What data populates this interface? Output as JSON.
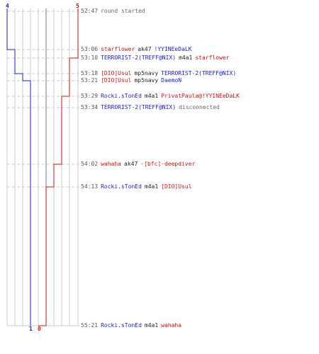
{
  "chart_data": {
    "type": "line",
    "series": [
      {
        "color": "#1a1acc",
        "values": [
          4,
          3,
          2,
          1
        ]
      },
      {
        "color": "#cc1111",
        "values": [
          5,
          4,
          3,
          2,
          1,
          0
        ]
      }
    ],
    "corner_labels": {
      "blue_start": "4",
      "red_start": "5",
      "blue_end": "1",
      "red_end": "0"
    }
  },
  "events": [
    {
      "time": "52:47",
      "parts": [
        {
          "text": "round started",
          "c": "gray"
        }
      ]
    },
    {
      "time": "53:06",
      "parts": [
        {
          "text": "starflower",
          "c": "red"
        },
        {
          "text": "ak47",
          "c": "dark"
        },
        {
          "text": "!YYINEeDaLK",
          "c": "blue"
        }
      ]
    },
    {
      "time": "53:10",
      "parts": [
        {
          "text": "TERRORIST-2(TREFF@NIX)",
          "c": "blue"
        },
        {
          "text": "m4a1",
          "c": "dark"
        },
        {
          "text": "starflower",
          "c": "red"
        }
      ]
    },
    {
      "time": "53:18",
      "parts": [
        {
          "text": "[DIO]Usul",
          "c": "red"
        },
        {
          "text": "mp5navy",
          "c": "dark"
        },
        {
          "text": "TERRORIST-2(TREFF@NIX)",
          "c": "blue"
        }
      ]
    },
    {
      "time": "53:21",
      "parts": [
        {
          "text": "[DIO]Usul",
          "c": "red"
        },
        {
          "text": "mp5navy",
          "c": "dark"
        },
        {
          "text": "DaemoN",
          "c": "blue"
        }
      ]
    },
    {
      "time": "53:29",
      "parts": [
        {
          "text": "Rocki.sTonEd",
          "c": "blue"
        },
        {
          "text": "m4a1",
          "c": "dark"
        },
        {
          "text": "PrivatPaula@!YYINEeDaLK",
          "c": "red"
        }
      ]
    },
    {
      "time": "53:34",
      "parts": [
        {
          "text": "TERRORIST-2(TREFF@NIX)",
          "c": "blue"
        },
        {
          "text": "disconnected",
          "c": "gray"
        }
      ]
    },
    {
      "time": "54:02",
      "parts": [
        {
          "text": "wahaha",
          "c": "red"
        },
        {
          "text": "ak47",
          "c": "dark"
        },
        {
          "text": "-[bfc]-deepdiver",
          "c": "red"
        }
      ]
    },
    {
      "time": "54:13",
      "parts": [
        {
          "text": "Rocki.sTonEd",
          "c": "blue"
        },
        {
          "text": "m4a1",
          "c": "dark"
        },
        {
          "text": "[DIO]Usul",
          "c": "red"
        }
      ]
    },
    {
      "time": "55:21",
      "parts": [
        {
          "text": "Rocki.sTonEd",
          "c": "blue"
        },
        {
          "text": "m4a1",
          "c": "dark"
        },
        {
          "text": "wahaha",
          "c": "red"
        }
      ]
    }
  ]
}
